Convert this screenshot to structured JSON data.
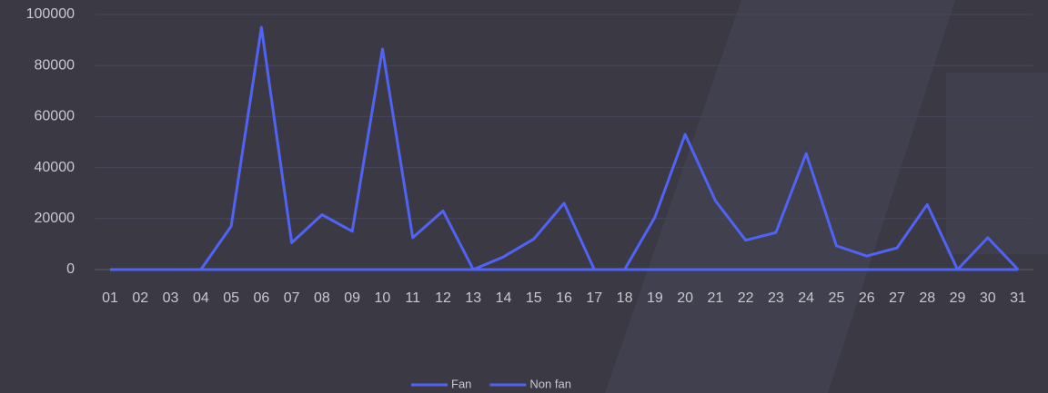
{
  "chart_data": {
    "type": "line",
    "categories": [
      "01",
      "02",
      "03",
      "04",
      "05",
      "06",
      "07",
      "08",
      "09",
      "10",
      "11",
      "12",
      "13",
      "14",
      "15",
      "16",
      "17",
      "18",
      "19",
      "20",
      "21",
      "22",
      "23",
      "24",
      "25",
      "26",
      "27",
      "28",
      "29",
      "30",
      "31"
    ],
    "series": [
      {
        "name": "Fan",
        "color": "#4f63f5",
        "values": [
          0,
          0,
          0,
          0,
          17000,
          95000,
          10500,
          21500,
          15000,
          86500,
          12500,
          23000,
          0,
          5000,
          12000,
          26000,
          0,
          0,
          20500,
          53000,
          27000,
          11500,
          14500,
          45500,
          9300,
          5300,
          8500,
          25500,
          0,
          12500,
          0
        ]
      },
      {
        "name": "Non fan",
        "color": "#4f63f5",
        "values": [
          0,
          0,
          0,
          0,
          0,
          0,
          0,
          0,
          0,
          0,
          0,
          0,
          0,
          0,
          0,
          0,
          0,
          0,
          0,
          0,
          0,
          0,
          0,
          0,
          0,
          0,
          0,
          0,
          0,
          0,
          0
        ]
      }
    ],
    "ylim": [
      0,
      100000
    ],
    "yticks": [
      0,
      20000,
      40000,
      60000,
      80000,
      100000
    ],
    "grid": true,
    "legend": "bottom"
  }
}
